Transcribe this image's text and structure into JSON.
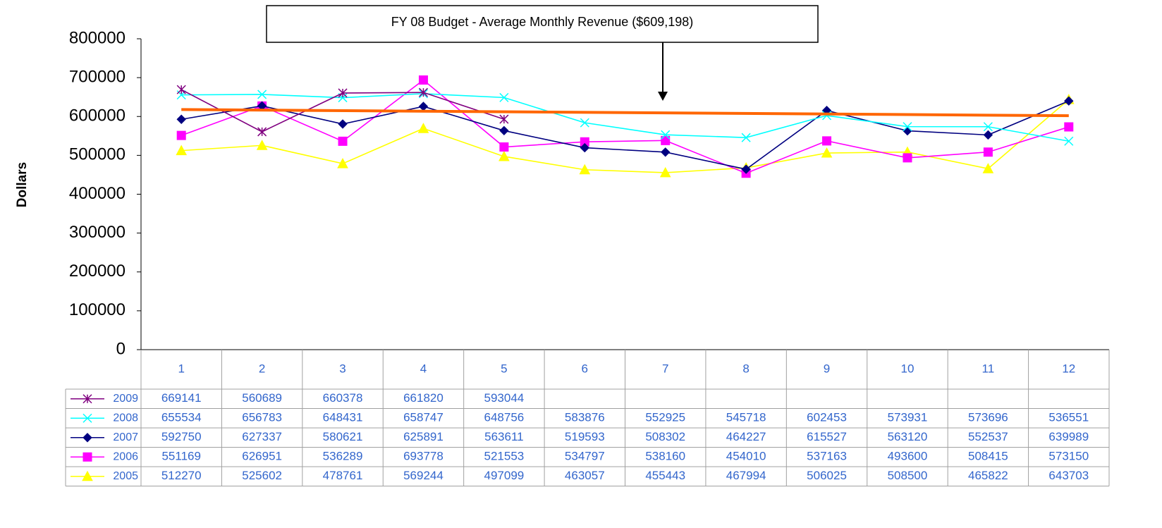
{
  "chart_data": {
    "type": "line",
    "y_label": "Dollars",
    "annotation": "FY 08 Budget - Average Monthly Revenue ($609,198)",
    "categories": [
      "1",
      "2",
      "3",
      "4",
      "5",
      "6",
      "7",
      "8",
      "9",
      "10",
      "11",
      "12"
    ],
    "ylim": [
      0,
      800000
    ],
    "yticks": [
      0,
      100000,
      200000,
      300000,
      400000,
      500000,
      600000,
      700000,
      800000
    ],
    "reference_line": {
      "values": [
        618000,
        602000
      ],
      "color": "#ff6600"
    },
    "series": [
      {
        "name": "2009",
        "color": "#800080",
        "marker": "star",
        "values": [
          669141,
          560689,
          660378,
          661820,
          593044,
          null,
          null,
          null,
          null,
          null,
          null,
          null
        ]
      },
      {
        "name": "2008",
        "color": "#00ffff",
        "marker": "x",
        "values": [
          655534,
          656783,
          648431,
          658747,
          648756,
          583876,
          552925,
          545718,
          602453,
          573931,
          573696,
          536551
        ]
      },
      {
        "name": "2007",
        "color": "#000080",
        "marker": "diamond",
        "values": [
          592750,
          627337,
          580621,
          625891,
          563611,
          519593,
          508302,
          464227,
          615527,
          563120,
          552537,
          639989
        ]
      },
      {
        "name": "2006",
        "color": "#ff00ff",
        "marker": "square",
        "values": [
          551169,
          626951,
          536289,
          693778,
          521553,
          534797,
          538160,
          454010,
          537163,
          493600,
          508415,
          573150
        ]
      },
      {
        "name": "2005",
        "color": "#ffff00",
        "marker": "triangle",
        "values": [
          512270,
          525602,
          478761,
          569244,
          497099,
          463057,
          455443,
          467994,
          506025,
          508500,
          465822,
          643703
        ]
      }
    ]
  }
}
